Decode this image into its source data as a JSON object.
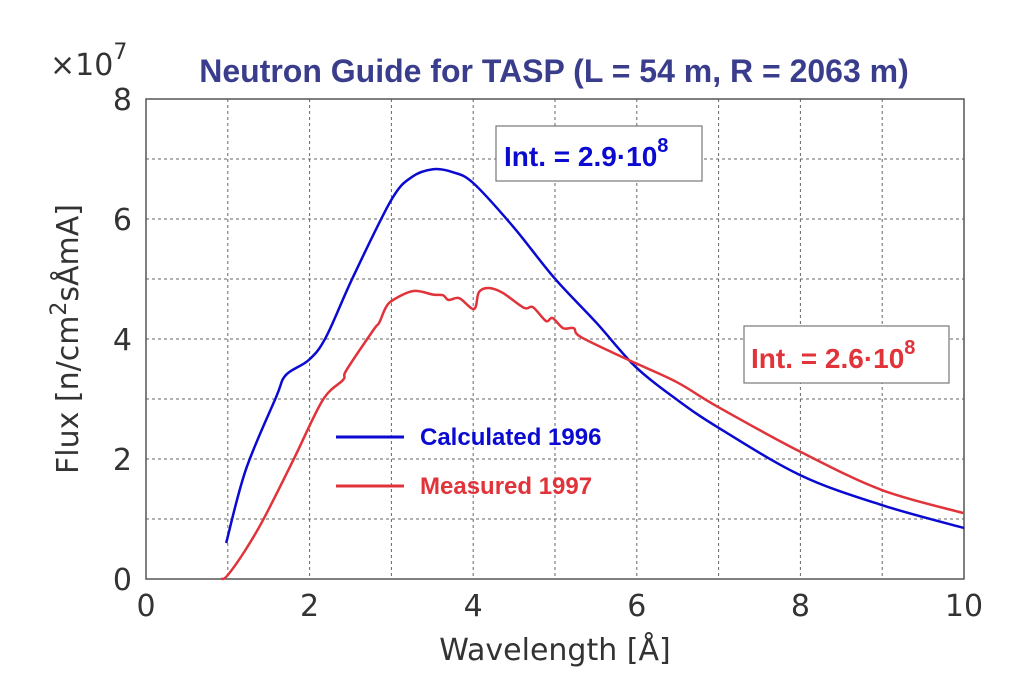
{
  "chart_data": {
    "type": "line",
    "title": "Neutron Guide for TASP (L = 54 m, R = 2063 m)",
    "xlabel": "Wavelength [Å]",
    "ylabel_parts": {
      "pre": "Flux [n/cm",
      "sup": "2",
      "post": "sÅmA]"
    },
    "y_multiplier": {
      "base": "×10",
      "exp": "7"
    },
    "xlim": [
      0,
      10
    ],
    "ylim": [
      0,
      8
    ],
    "xticks": [
      "0",
      "2",
      "4",
      "6",
      "8",
      "10"
    ],
    "yticks": [
      "0",
      "2",
      "4",
      "6",
      "8"
    ],
    "grid": true,
    "legend_position": "center-left",
    "colors": {
      "title": "#3a3d8c",
      "calculated": "#0a0ad0",
      "measured": "#e0333a"
    },
    "series": [
      {
        "name": "Calculated 1996",
        "x": [
          0.98,
          1.22,
          1.59,
          1.71,
          1.99,
          2.2,
          2.53,
          3.0,
          3.25,
          3.51,
          3.75,
          4.0,
          4.49,
          4.99,
          5.5,
          5.99,
          6.5,
          7.0,
          8.0,
          9.0,
          10.0
        ],
        "y": [
          0.6,
          1.82,
          3.03,
          3.4,
          3.65,
          4.03,
          5.03,
          6.32,
          6.7,
          6.83,
          6.78,
          6.6,
          5.87,
          5.02,
          4.28,
          3.53,
          2.98,
          2.52,
          1.73,
          1.23,
          0.85
        ]
      },
      {
        "name": "Measured 1997",
        "x": [
          0.92,
          0.99,
          1.2,
          1.43,
          1.8,
          2.16,
          2.41,
          2.45,
          2.78,
          2.85,
          2.93,
          3.02,
          3.27,
          3.51,
          3.63,
          3.7,
          3.83,
          4.01,
          4.07,
          4.19,
          4.36,
          4.62,
          4.73,
          4.89,
          4.97,
          5.1,
          5.23,
          5.32,
          5.9,
          6.49,
          6.99,
          8.0,
          9.0,
          9.99
        ],
        "y": [
          0.0,
          0.05,
          0.45,
          0.98,
          1.98,
          2.98,
          3.32,
          3.48,
          4.15,
          4.27,
          4.52,
          4.65,
          4.8,
          4.74,
          4.73,
          4.65,
          4.68,
          4.5,
          4.78,
          4.85,
          4.77,
          4.52,
          4.53,
          4.3,
          4.35,
          4.18,
          4.18,
          4.03,
          3.65,
          3.28,
          2.87,
          2.12,
          1.48,
          1.1
        ]
      }
    ],
    "annotations": [
      {
        "series": "Calculated 1996",
        "text": "Int. = 2.9·10",
        "exp": "8"
      },
      {
        "series": "Measured 1997",
        "text": "Int. = 2.6·10",
        "exp": "8"
      }
    ]
  }
}
